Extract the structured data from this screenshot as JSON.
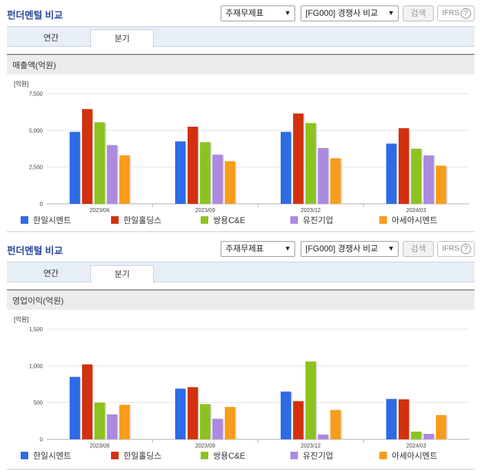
{
  "panels": [
    {
      "title": "펀더멘털 비교",
      "select_a": "주재무제표",
      "select_b": "[FG000] 경쟁사 비교",
      "search_label": "검색",
      "ifrs_label": "IFRS",
      "help_glyph": "?",
      "tabs": [
        "연간",
        "분기"
      ],
      "active_tab": "분기",
      "chart_title": "매출액(억원)"
    },
    {
      "title": "펀더멘털 비교",
      "select_a": "주재무제표",
      "select_b": "[FG000] 경쟁사 비교",
      "search_label": "검색",
      "ifrs_label": "IFRS",
      "help_glyph": "?",
      "tabs": [
        "연간",
        "분기"
      ],
      "active_tab": "분기",
      "chart_title": "영업이익(억원)"
    }
  ],
  "colors": [
    "#2e6be6",
    "#d2310e",
    "#8cc31f",
    "#ac8ae0",
    "#f99d1b"
  ],
  "chart_data": [
    {
      "type": "bar",
      "unit_label": "[억원]",
      "categories": [
        "2023/06",
        "2023/09",
        "2023/12",
        "2024/03"
      ],
      "ylim": [
        0,
        7500
      ],
      "yticks": [
        0,
        2500,
        5000,
        7500
      ],
      "ytick_labels": [
        "0",
        "2,500",
        "5,000",
        "7,500"
      ],
      "grid": true,
      "legend": "bottom",
      "series": [
        {
          "name": "한일시멘트",
          "values": [
            4900,
            4250,
            4900,
            4100
          ]
        },
        {
          "name": "한일홀딩스",
          "values": [
            6450,
            5250,
            6150,
            5150
          ]
        },
        {
          "name": "쌍용C&E",
          "values": [
            5550,
            4200,
            5500,
            3750
          ]
        },
        {
          "name": "유진기업",
          "values": [
            4000,
            3350,
            3800,
            3300
          ]
        },
        {
          "name": "아세아시멘트",
          "values": [
            3300,
            2900,
            3100,
            2600
          ]
        }
      ]
    },
    {
      "type": "bar",
      "unit_label": "[억원]",
      "categories": [
        "2023/06",
        "2023/09",
        "2023/12",
        "2024/03"
      ],
      "ylim": [
        0,
        1500
      ],
      "yticks": [
        0,
        500,
        1000,
        1500
      ],
      "ytick_labels": [
        "0",
        "500",
        "1,000",
        "1,500"
      ],
      "grid": true,
      "legend": "bottom",
      "series": [
        {
          "name": "한일시멘트",
          "values": [
            850,
            690,
            650,
            550
          ]
        },
        {
          "name": "한일홀딩스",
          "values": [
            1020,
            710,
            520,
            545
          ]
        },
        {
          "name": "쌍용C&E",
          "values": [
            500,
            480,
            1060,
            105
          ]
        },
        {
          "name": "유진기업",
          "values": [
            340,
            280,
            65,
            75
          ]
        },
        {
          "name": "아세아시멘트",
          "values": [
            470,
            440,
            400,
            330
          ]
        }
      ]
    }
  ]
}
